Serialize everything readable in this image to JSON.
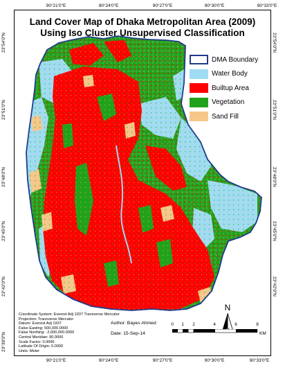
{
  "map": {
    "title_line1": "Land Cover Map of Dhaka Metropolitan Area (2009)",
    "title_line2": "Using Iso Cluster Unsupervised Classification",
    "lon_ticks": [
      "90°21'0\"E",
      "90°24'0\"E",
      "90°27'0\"E",
      "90°30'0\"E",
      "90°33'0\"E"
    ],
    "lat_ticks": [
      "23°54'0\"N",
      "23°51'0\"N",
      "23°48'0\"N",
      "23°45'0\"N",
      "23°42'0\"N",
      "23°39'0\"N"
    ]
  },
  "legend": {
    "items": [
      {
        "label": "DMA Boundary",
        "fill": "#ffffff",
        "border": "#1f3b8c"
      },
      {
        "label": "Water Body",
        "fill": "#9fdcf2",
        "border": "#9fdcf2"
      },
      {
        "label": "Builtup Area",
        "fill": "#ff0000",
        "border": "#ff0000"
      },
      {
        "label": "Vegetation",
        "fill": "#22a21a",
        "border": "#22a21a"
      },
      {
        "label": "Sand Fill",
        "fill": "#f5c78a",
        "border": "#f5c78a"
      }
    ]
  },
  "metadata": {
    "lines": [
      "Coordinate System: Everest Adj 1937 Transverse Mercator",
      "Projection: Transverse Mercator",
      "Datum: Everest Adj 1937",
      "False Easting: 500,000.0000",
      "False Northing: -2,000,000.0000",
      "Central Meridian: 90.0000",
      "Scale Factor: 0.9996",
      "Latitude Of Origin: 0.0000",
      "Units: Meter"
    ]
  },
  "credits": {
    "author": "Author: Bayes Ahmed",
    "date": "Date: 15-Sep-14"
  },
  "north_arrow": {
    "letter": "N"
  },
  "scale_bar": {
    "labels": [
      "0",
      "1",
      "2",
      "4",
      "6",
      "8"
    ],
    "unit": "KM"
  },
  "colors": {
    "water": "#9fdcf2",
    "builtup": "#ff0000",
    "vegetation": "#22a21a",
    "sandfill": "#f5c78a",
    "boundary": "#1f3b8c"
  }
}
